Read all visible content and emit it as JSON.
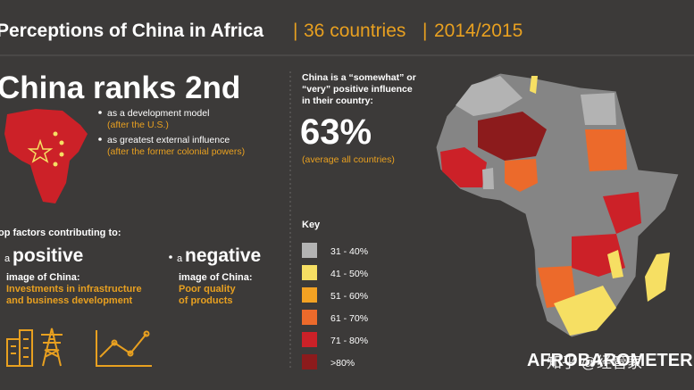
{
  "header": {
    "title": "Perceptions of China in Africa",
    "countries": "36 countries",
    "period": "2014/2015"
  },
  "ranking": {
    "headline": "China ranks 2nd",
    "items": [
      {
        "label": "as a development model",
        "note": "(after the U.S.)"
      },
      {
        "label": "as greatest external influence",
        "note": "(after the former colonial powers)"
      }
    ]
  },
  "factors": {
    "heading": "op factors contributing to:",
    "positive": {
      "prefix": "a",
      "word": "positive",
      "label": "image of China:",
      "detail": [
        "Investments in infrastructure",
        "and business development"
      ]
    },
    "negative": {
      "prefix": "a",
      "word": "negative",
      "label": "image of China:",
      "detail": [
        "Poor quality",
        "of products"
      ]
    }
  },
  "stat": {
    "intro": [
      "China is a “somewhat” or",
      "“very” positive influence",
      "in their country:"
    ],
    "value": "63%",
    "note": "(average all countries)"
  },
  "key": {
    "title": "Key",
    "items": [
      {
        "label": "31 - 40%",
        "color": "#b3b3b3"
      },
      {
        "label": "41 - 50%",
        "color": "#f6df63"
      },
      {
        "label": "51 - 60%",
        "color": "#f3a223"
      },
      {
        "label": "61 - 70%",
        "color": "#ec6a2b"
      },
      {
        "label": "71 - 80%",
        "color": "#cc2128"
      },
      {
        "label": ">80%",
        "color": "#8c1b1c"
      }
    ]
  },
  "footer": {
    "brand": "AFROBAROMETER",
    "watermark": "知乎 @经管家"
  }
}
